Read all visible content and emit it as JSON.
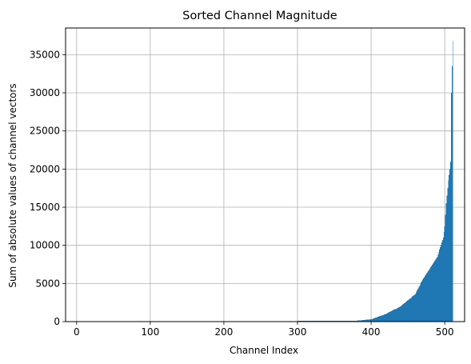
{
  "chart_data": {
    "type": "bar",
    "title": "Sorted Channel Magnitude",
    "xlabel": "Channel Index",
    "ylabel": "Sum of absolute values of channel vectors",
    "xlim": [
      -15,
      527
    ],
    "ylim": [
      0,
      38500
    ],
    "xticks": [
      0,
      100,
      200,
      300,
      400,
      500
    ],
    "yticks": [
      0,
      5000,
      10000,
      15000,
      20000,
      25000,
      30000,
      35000
    ],
    "grid": true,
    "bar_color": "#1f77b4",
    "channel_count": 512,
    "profile": {
      "description_points": [
        [
          0,
          0
        ],
        [
          300,
          0
        ],
        [
          301,
          100
        ],
        [
          380,
          120
        ],
        [
          400,
          300
        ],
        [
          420,
          1000
        ],
        [
          440,
          2000
        ],
        [
          460,
          3600
        ],
        [
          470,
          5500
        ],
        [
          480,
          7000
        ],
        [
          490,
          8500
        ],
        [
          498,
          11000
        ],
        [
          500,
          12500
        ],
        [
          502,
          15500
        ],
        [
          505,
          18500
        ],
        [
          507,
          20000
        ],
        [
          508,
          21000
        ],
        [
          509,
          30000
        ],
        [
          510,
          33500
        ],
        [
          511,
          36800
        ]
      ]
    }
  }
}
